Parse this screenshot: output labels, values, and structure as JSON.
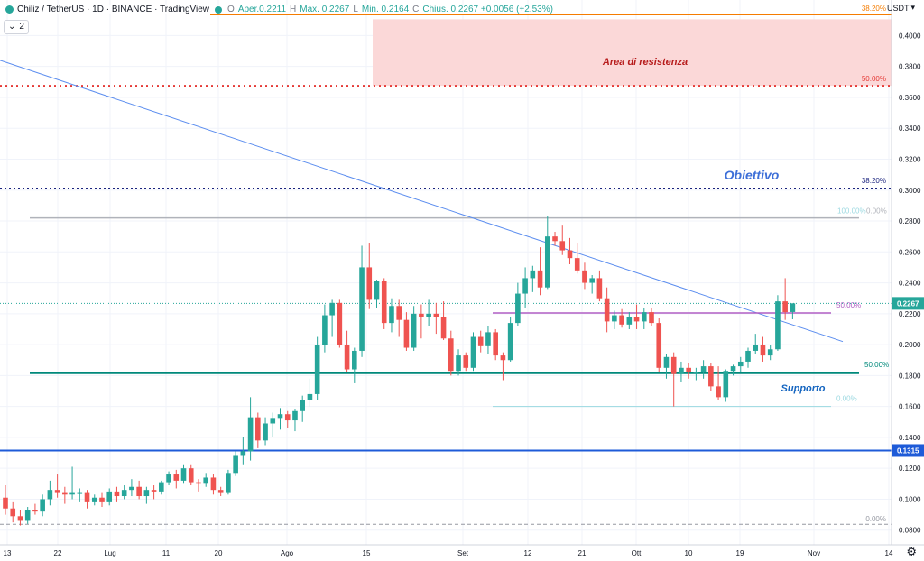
{
  "header": {
    "symbol": "Chiliz / TetherUS · 1D · BINANCE · TradingView",
    "open_label": "O",
    "open_value": "Aper.0.2211",
    "high_label": "H",
    "high_value": "Max. 0.2267",
    "low_label": "L",
    "low_value": "Min. 0.2164",
    "close_label": "C",
    "close_value": "Chius. 0.2267 +0.0056 (+2.53%)",
    "indicator_count": "2",
    "currency": "USDT",
    "colors": {
      "up": "#26a69a",
      "down": "#ef5350"
    }
  },
  "chart_data": {
    "type": "candlestick",
    "title": "",
    "y_axis": {
      "ticks": [
        "0.4000",
        "0.3800",
        "0.3600",
        "0.3400",
        "0.3200",
        "0.3000",
        "0.2800",
        "0.2600",
        "0.2400",
        "0.2200",
        "0.2000",
        "0.1800",
        "0.1600",
        "0.1400",
        "0.1200",
        "0.1000",
        "0.0800"
      ],
      "range": [
        0.0775,
        0.4195
      ]
    },
    "x_axis": {
      "ticks": [
        "13",
        "22",
        "Lug",
        "11",
        "20",
        "Ago",
        "15",
        "Set",
        "12",
        "21",
        "Ott",
        "10",
        "19",
        "Nov",
        "14"
      ]
    },
    "last_price": "0.2267",
    "support_price_label": "0.1315",
    "candles": [
      {
        "o": 0.101,
        "h": 0.109,
        "l": 0.09,
        "c": 0.094
      },
      {
        "o": 0.094,
        "h": 0.098,
        "l": 0.085,
        "c": 0.089
      },
      {
        "o": 0.089,
        "h": 0.093,
        "l": 0.083,
        "c": 0.086
      },
      {
        "o": 0.086,
        "h": 0.095,
        "l": 0.084,
        "c": 0.093
      },
      {
        "o": 0.093,
        "h": 0.097,
        "l": 0.09,
        "c": 0.092
      },
      {
        "o": 0.092,
        "h": 0.103,
        "l": 0.089,
        "c": 0.1
      },
      {
        "o": 0.1,
        "h": 0.112,
        "l": 0.096,
        "c": 0.106
      },
      {
        "o": 0.106,
        "h": 0.116,
        "l": 0.101,
        "c": 0.104
      },
      {
        "o": 0.104,
        "h": 0.108,
        "l": 0.097,
        "c": 0.103
      },
      {
        "o": 0.103,
        "h": 0.121,
        "l": 0.1,
        "c": 0.104
      },
      {
        "o": 0.104,
        "h": 0.107,
        "l": 0.098,
        "c": 0.104
      },
      {
        "o": 0.104,
        "h": 0.106,
        "l": 0.094,
        "c": 0.098
      },
      {
        "o": 0.098,
        "h": 0.103,
        "l": 0.096,
        "c": 0.101
      },
      {
        "o": 0.101,
        "h": 0.104,
        "l": 0.095,
        "c": 0.098
      },
      {
        "o": 0.098,
        "h": 0.107,
        "l": 0.096,
        "c": 0.105
      },
      {
        "o": 0.105,
        "h": 0.108,
        "l": 0.098,
        "c": 0.102
      },
      {
        "o": 0.102,
        "h": 0.109,
        "l": 0.1,
        "c": 0.106
      },
      {
        "o": 0.106,
        "h": 0.113,
        "l": 0.102,
        "c": 0.108
      },
      {
        "o": 0.108,
        "h": 0.112,
        "l": 0.1,
        "c": 0.102
      },
      {
        "o": 0.102,
        "h": 0.108,
        "l": 0.097,
        "c": 0.106
      },
      {
        "o": 0.106,
        "h": 0.109,
        "l": 0.1,
        "c": 0.105
      },
      {
        "o": 0.105,
        "h": 0.112,
        "l": 0.103,
        "c": 0.111
      },
      {
        "o": 0.111,
        "h": 0.118,
        "l": 0.109,
        "c": 0.116
      },
      {
        "o": 0.116,
        "h": 0.119,
        "l": 0.107,
        "c": 0.112
      },
      {
        "o": 0.112,
        "h": 0.122,
        "l": 0.11,
        "c": 0.12
      },
      {
        "o": 0.12,
        "h": 0.122,
        "l": 0.109,
        "c": 0.111
      },
      {
        "o": 0.111,
        "h": 0.113,
        "l": 0.105,
        "c": 0.11
      },
      {
        "o": 0.11,
        "h": 0.117,
        "l": 0.108,
        "c": 0.114
      },
      {
        "o": 0.114,
        "h": 0.116,
        "l": 0.103,
        "c": 0.106
      },
      {
        "o": 0.106,
        "h": 0.108,
        "l": 0.102,
        "c": 0.104
      },
      {
        "o": 0.104,
        "h": 0.119,
        "l": 0.103,
        "c": 0.117
      },
      {
        "o": 0.117,
        "h": 0.131,
        "l": 0.115,
        "c": 0.128
      },
      {
        "o": 0.128,
        "h": 0.14,
        "l": 0.122,
        "c": 0.131
      },
      {
        "o": 0.131,
        "h": 0.166,
        "l": 0.125,
        "c": 0.153
      },
      {
        "o": 0.153,
        "h": 0.156,
        "l": 0.133,
        "c": 0.138
      },
      {
        "o": 0.138,
        "h": 0.153,
        "l": 0.135,
        "c": 0.149
      },
      {
        "o": 0.149,
        "h": 0.156,
        "l": 0.14,
        "c": 0.152
      },
      {
        "o": 0.152,
        "h": 0.159,
        "l": 0.145,
        "c": 0.155
      },
      {
        "o": 0.155,
        "h": 0.157,
        "l": 0.146,
        "c": 0.151
      },
      {
        "o": 0.151,
        "h": 0.158,
        "l": 0.144,
        "c": 0.157
      },
      {
        "o": 0.157,
        "h": 0.167,
        "l": 0.15,
        "c": 0.164
      },
      {
        "o": 0.164,
        "h": 0.178,
        "l": 0.16,
        "c": 0.168
      },
      {
        "o": 0.168,
        "h": 0.205,
        "l": 0.164,
        "c": 0.2
      },
      {
        "o": 0.2,
        "h": 0.226,
        "l": 0.195,
        "c": 0.219
      },
      {
        "o": 0.219,
        "h": 0.229,
        "l": 0.205,
        "c": 0.227
      },
      {
        "o": 0.227,
        "h": 0.229,
        "l": 0.198,
        "c": 0.2
      },
      {
        "o": 0.2,
        "h": 0.209,
        "l": 0.182,
        "c": 0.184
      },
      {
        "o": 0.184,
        "h": 0.198,
        "l": 0.175,
        "c": 0.196
      },
      {
        "o": 0.196,
        "h": 0.264,
        "l": 0.192,
        "c": 0.25
      },
      {
        "o": 0.25,
        "h": 0.266,
        "l": 0.223,
        "c": 0.229
      },
      {
        "o": 0.229,
        "h": 0.242,
        "l": 0.224,
        "c": 0.241
      },
      {
        "o": 0.241,
        "h": 0.243,
        "l": 0.21,
        "c": 0.214
      },
      {
        "o": 0.214,
        "h": 0.23,
        "l": 0.208,
        "c": 0.225
      },
      {
        "o": 0.225,
        "h": 0.229,
        "l": 0.205,
        "c": 0.216
      },
      {
        "o": 0.216,
        "h": 0.221,
        "l": 0.196,
        "c": 0.198
      },
      {
        "o": 0.198,
        "h": 0.225,
        "l": 0.196,
        "c": 0.22
      },
      {
        "o": 0.22,
        "h": 0.226,
        "l": 0.204,
        "c": 0.218
      },
      {
        "o": 0.218,
        "h": 0.229,
        "l": 0.212,
        "c": 0.22
      },
      {
        "o": 0.22,
        "h": 0.227,
        "l": 0.207,
        "c": 0.218
      },
      {
        "o": 0.218,
        "h": 0.228,
        "l": 0.203,
        "c": 0.204
      },
      {
        "o": 0.204,
        "h": 0.209,
        "l": 0.18,
        "c": 0.183
      },
      {
        "o": 0.183,
        "h": 0.197,
        "l": 0.18,
        "c": 0.193
      },
      {
        "o": 0.193,
        "h": 0.195,
        "l": 0.183,
        "c": 0.185
      },
      {
        "o": 0.185,
        "h": 0.208,
        "l": 0.183,
        "c": 0.205
      },
      {
        "o": 0.205,
        "h": 0.209,
        "l": 0.195,
        "c": 0.199
      },
      {
        "o": 0.199,
        "h": 0.212,
        "l": 0.194,
        "c": 0.208
      },
      {
        "o": 0.208,
        "h": 0.21,
        "l": 0.19,
        "c": 0.193
      },
      {
        "o": 0.193,
        "h": 0.195,
        "l": 0.177,
        "c": 0.19
      },
      {
        "o": 0.19,
        "h": 0.218,
        "l": 0.189,
        "c": 0.214
      },
      {
        "o": 0.214,
        "h": 0.24,
        "l": 0.212,
        "c": 0.233
      },
      {
        "o": 0.233,
        "h": 0.25,
        "l": 0.224,
        "c": 0.243
      },
      {
        "o": 0.243,
        "h": 0.251,
        "l": 0.234,
        "c": 0.248
      },
      {
        "o": 0.248,
        "h": 0.263,
        "l": 0.232,
        "c": 0.237
      },
      {
        "o": 0.237,
        "h": 0.283,
        "l": 0.236,
        "c": 0.27
      },
      {
        "o": 0.27,
        "h": 0.273,
        "l": 0.264,
        "c": 0.267
      },
      {
        "o": 0.267,
        "h": 0.277,
        "l": 0.258,
        "c": 0.261
      },
      {
        "o": 0.261,
        "h": 0.269,
        "l": 0.252,
        "c": 0.256
      },
      {
        "o": 0.256,
        "h": 0.266,
        "l": 0.246,
        "c": 0.248
      },
      {
        "o": 0.248,
        "h": 0.253,
        "l": 0.236,
        "c": 0.24
      },
      {
        "o": 0.24,
        "h": 0.245,
        "l": 0.233,
        "c": 0.243
      },
      {
        "o": 0.243,
        "h": 0.248,
        "l": 0.228,
        "c": 0.23
      },
      {
        "o": 0.23,
        "h": 0.237,
        "l": 0.208,
        "c": 0.215
      },
      {
        "o": 0.215,
        "h": 0.222,
        "l": 0.21,
        "c": 0.219
      },
      {
        "o": 0.219,
        "h": 0.223,
        "l": 0.211,
        "c": 0.213
      },
      {
        "o": 0.213,
        "h": 0.221,
        "l": 0.21,
        "c": 0.218
      },
      {
        "o": 0.218,
        "h": 0.226,
        "l": 0.21,
        "c": 0.215
      },
      {
        "o": 0.215,
        "h": 0.224,
        "l": 0.21,
        "c": 0.221
      },
      {
        "o": 0.221,
        "h": 0.224,
        "l": 0.212,
        "c": 0.214
      },
      {
        "o": 0.214,
        "h": 0.217,
        "l": 0.182,
        "c": 0.185
      },
      {
        "o": 0.185,
        "h": 0.194,
        "l": 0.178,
        "c": 0.192
      },
      {
        "o": 0.192,
        "h": 0.195,
        "l": 0.16,
        "c": 0.181
      },
      {
        "o": 0.181,
        "h": 0.189,
        "l": 0.176,
        "c": 0.185
      },
      {
        "o": 0.185,
        "h": 0.188,
        "l": 0.178,
        "c": 0.182
      },
      {
        "o": 0.182,
        "h": 0.185,
        "l": 0.177,
        "c": 0.182
      },
      {
        "o": 0.182,
        "h": 0.19,
        "l": 0.178,
        "c": 0.186
      },
      {
        "o": 0.186,
        "h": 0.188,
        "l": 0.17,
        "c": 0.173
      },
      {
        "o": 0.173,
        "h": 0.186,
        "l": 0.164,
        "c": 0.166
      },
      {
        "o": 0.166,
        "h": 0.184,
        "l": 0.163,
        "c": 0.183
      },
      {
        "o": 0.183,
        "h": 0.187,
        "l": 0.18,
        "c": 0.186
      },
      {
        "o": 0.186,
        "h": 0.192,
        "l": 0.182,
        "c": 0.189
      },
      {
        "o": 0.189,
        "h": 0.198,
        "l": 0.185,
        "c": 0.196
      },
      {
        "o": 0.196,
        "h": 0.207,
        "l": 0.194,
        "c": 0.2
      },
      {
        "o": 0.2,
        "h": 0.205,
        "l": 0.189,
        "c": 0.193
      },
      {
        "o": 0.193,
        "h": 0.2,
        "l": 0.19,
        "c": 0.197
      },
      {
        "o": 0.197,
        "h": 0.232,
        "l": 0.196,
        "c": 0.228
      },
      {
        "o": 0.228,
        "h": 0.243,
        "l": 0.216,
        "c": 0.221
      },
      {
        "o": 0.2211,
        "h": 0.2267,
        "l": 0.2164,
        "c": 0.2267
      }
    ],
    "annotations": {
      "resistance_zone_label": "Area di resistenza",
      "target_label": "Obiettivo",
      "support_label": "Supporto",
      "fib_labels": {
        "top_382": "38.20%",
        "top_50": "50.00%",
        "mid_382": "38.20%",
        "fib100_a": "100.00%",
        "fib100_b": "0.00%",
        "mid_50": "50.00%",
        "sup_50": "50.00%",
        "low_0": "0.00%",
        "bottom_0": "0.00%"
      }
    },
    "levels": {
      "top_orange": 0.4195,
      "resistance_zone": [
        0.3675,
        0.4105
      ],
      "red_dotted": 0.3675,
      "target_dotted": 0.301,
      "gray_top": 0.282,
      "purple": 0.2205,
      "support": 0.1815,
      "fib_low": 0.16,
      "blue_support": 0.1315,
      "bottom_dashed": 0.0838
    },
    "trendline": {
      "from_price": 0.384,
      "to_price": 0.202
    },
    "grid": true
  }
}
